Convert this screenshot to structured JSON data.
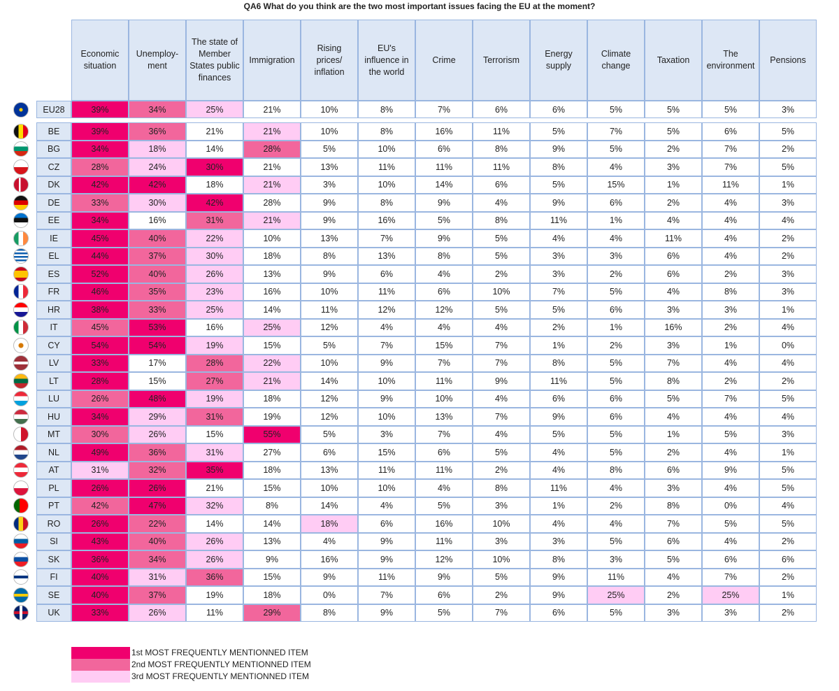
{
  "title": "QA6 What do you think are the two most important issues facing the EU at the moment?",
  "columns": [
    "Economic situation",
    "Unemploy- ment",
    "The state of Member States public finances",
    "Immigration",
    "Rising prices/ inflation",
    "EU's influence in the world",
    "Crime",
    "Terrorism",
    "Energy supply",
    "Climate change",
    "Taxation",
    "The environment",
    "Pensions"
  ],
  "rows": [
    {
      "code": "EU28",
      "cells": [
        "39%",
        "34%",
        "25%",
        "21%",
        "10%",
        "8%",
        "7%",
        "6%",
        "6%",
        "5%",
        "5%",
        "5%",
        "3%"
      ],
      "highlights": [
        [
          0,
          1
        ],
        [
          1,
          2
        ],
        [
          2,
          3
        ]
      ]
    },
    {
      "code": "BE",
      "cells": [
        "39%",
        "36%",
        "21%",
        "21%",
        "10%",
        "8%",
        "16%",
        "11%",
        "5%",
        "7%",
        "5%",
        "6%",
        "5%"
      ],
      "highlights": [
        [
          0,
          1
        ],
        [
          1,
          2
        ],
        [
          3,
          3
        ]
      ]
    },
    {
      "code": "BG",
      "cells": [
        "34%",
        "18%",
        "14%",
        "28%",
        "5%",
        "10%",
        "6%",
        "8%",
        "9%",
        "5%",
        "2%",
        "7%",
        "2%"
      ],
      "highlights": [
        [
          0,
          1
        ],
        [
          1,
          3
        ],
        [
          3,
          2
        ]
      ]
    },
    {
      "code": "CZ",
      "cells": [
        "28%",
        "24%",
        "30%",
        "21%",
        "13%",
        "11%",
        "11%",
        "11%",
        "8%",
        "4%",
        "3%",
        "7%",
        "5%"
      ],
      "highlights": [
        [
          0,
          2
        ],
        [
          1,
          3
        ],
        [
          2,
          1
        ]
      ]
    },
    {
      "code": "DK",
      "cells": [
        "42%",
        "42%",
        "18%",
        "21%",
        "3%",
        "10%",
        "14%",
        "6%",
        "5%",
        "15%",
        "1%",
        "11%",
        "1%"
      ],
      "highlights": [
        [
          0,
          1
        ],
        [
          1,
          1
        ],
        [
          3,
          3
        ]
      ]
    },
    {
      "code": "DE",
      "cells": [
        "33%",
        "30%",
        "42%",
        "28%",
        "9%",
        "8%",
        "9%",
        "4%",
        "9%",
        "6%",
        "2%",
        "4%",
        "3%"
      ],
      "highlights": [
        [
          0,
          2
        ],
        [
          1,
          3
        ],
        [
          2,
          1
        ]
      ]
    },
    {
      "code": "EE",
      "cells": [
        "34%",
        "16%",
        "31%",
        "21%",
        "9%",
        "16%",
        "5%",
        "8%",
        "11%",
        "1%",
        "4%",
        "4%",
        "4%"
      ],
      "highlights": [
        [
          0,
          1
        ],
        [
          2,
          2
        ],
        [
          3,
          3
        ]
      ]
    },
    {
      "code": "IE",
      "cells": [
        "45%",
        "40%",
        "22%",
        "10%",
        "13%",
        "7%",
        "9%",
        "5%",
        "4%",
        "4%",
        "11%",
        "4%",
        "2%"
      ],
      "highlights": [
        [
          0,
          1
        ],
        [
          1,
          2
        ],
        [
          2,
          3
        ]
      ]
    },
    {
      "code": "EL",
      "cells": [
        "44%",
        "37%",
        "30%",
        "18%",
        "8%",
        "13%",
        "8%",
        "5%",
        "3%",
        "3%",
        "6%",
        "4%",
        "2%"
      ],
      "highlights": [
        [
          0,
          1
        ],
        [
          1,
          2
        ],
        [
          2,
          3
        ]
      ]
    },
    {
      "code": "ES",
      "cells": [
        "52%",
        "40%",
        "26%",
        "13%",
        "9%",
        "6%",
        "4%",
        "2%",
        "3%",
        "2%",
        "6%",
        "2%",
        "3%"
      ],
      "highlights": [
        [
          0,
          1
        ],
        [
          1,
          2
        ],
        [
          2,
          3
        ]
      ]
    },
    {
      "code": "FR",
      "cells": [
        "46%",
        "35%",
        "23%",
        "16%",
        "10%",
        "11%",
        "6%",
        "10%",
        "7%",
        "5%",
        "4%",
        "8%",
        "3%"
      ],
      "highlights": [
        [
          0,
          1
        ],
        [
          1,
          2
        ],
        [
          2,
          3
        ]
      ]
    },
    {
      "code": "HR",
      "cells": [
        "38%",
        "33%",
        "25%",
        "14%",
        "11%",
        "12%",
        "12%",
        "5%",
        "5%",
        "6%",
        "3%",
        "3%",
        "1%"
      ],
      "highlights": [
        [
          0,
          1
        ],
        [
          1,
          2
        ],
        [
          2,
          3
        ]
      ]
    },
    {
      "code": "IT",
      "cells": [
        "45%",
        "53%",
        "16%",
        "25%",
        "12%",
        "4%",
        "4%",
        "4%",
        "2%",
        "1%",
        "16%",
        "2%",
        "4%"
      ],
      "highlights": [
        [
          0,
          2
        ],
        [
          1,
          1
        ],
        [
          3,
          3
        ]
      ]
    },
    {
      "code": "CY",
      "cells": [
        "54%",
        "54%",
        "19%",
        "15%",
        "5%",
        "7%",
        "15%",
        "7%",
        "1%",
        "2%",
        "3%",
        "1%",
        "0%"
      ],
      "highlights": [
        [
          0,
          1
        ],
        [
          1,
          1
        ],
        [
          2,
          3
        ]
      ]
    },
    {
      "code": "LV",
      "cells": [
        "33%",
        "17%",
        "28%",
        "22%",
        "10%",
        "9%",
        "7%",
        "7%",
        "8%",
        "5%",
        "7%",
        "4%",
        "4%"
      ],
      "highlights": [
        [
          0,
          1
        ],
        [
          2,
          2
        ],
        [
          3,
          3
        ]
      ]
    },
    {
      "code": "LT",
      "cells": [
        "28%",
        "15%",
        "27%",
        "21%",
        "14%",
        "10%",
        "11%",
        "9%",
        "11%",
        "5%",
        "8%",
        "2%",
        "2%"
      ],
      "highlights": [
        [
          0,
          1
        ],
        [
          2,
          2
        ],
        [
          3,
          3
        ]
      ]
    },
    {
      "code": "LU",
      "cells": [
        "26%",
        "48%",
        "19%",
        "18%",
        "12%",
        "9%",
        "10%",
        "4%",
        "6%",
        "6%",
        "5%",
        "7%",
        "5%"
      ],
      "highlights": [
        [
          0,
          2
        ],
        [
          1,
          1
        ],
        [
          2,
          3
        ]
      ]
    },
    {
      "code": "HU",
      "cells": [
        "34%",
        "29%",
        "31%",
        "19%",
        "12%",
        "10%",
        "13%",
        "7%",
        "9%",
        "6%",
        "4%",
        "4%",
        "4%"
      ],
      "highlights": [
        [
          0,
          1
        ],
        [
          1,
          3
        ],
        [
          2,
          2
        ]
      ]
    },
    {
      "code": "MT",
      "cells": [
        "30%",
        "26%",
        "15%",
        "55%",
        "5%",
        "3%",
        "7%",
        "4%",
        "5%",
        "5%",
        "1%",
        "5%",
        "3%"
      ],
      "highlights": [
        [
          0,
          2
        ],
        [
          1,
          3
        ],
        [
          3,
          1
        ]
      ]
    },
    {
      "code": "NL",
      "cells": [
        "49%",
        "36%",
        "31%",
        "27%",
        "6%",
        "15%",
        "6%",
        "5%",
        "4%",
        "5%",
        "2%",
        "4%",
        "1%"
      ],
      "highlights": [
        [
          0,
          1
        ],
        [
          1,
          2
        ],
        [
          2,
          3
        ]
      ]
    },
    {
      "code": "AT",
      "cells": [
        "31%",
        "32%",
        "35%",
        "18%",
        "13%",
        "11%",
        "11%",
        "2%",
        "4%",
        "8%",
        "6%",
        "9%",
        "5%"
      ],
      "highlights": [
        [
          0,
          3
        ],
        [
          1,
          2
        ],
        [
          2,
          1
        ]
      ]
    },
    {
      "code": "PL",
      "cells": [
        "26%",
        "26%",
        "21%",
        "15%",
        "10%",
        "10%",
        "4%",
        "8%",
        "11%",
        "4%",
        "3%",
        "4%",
        "5%"
      ],
      "highlights": [
        [
          0,
          1
        ],
        [
          1,
          1
        ]
      ]
    },
    {
      "code": "PT",
      "cells": [
        "42%",
        "47%",
        "32%",
        "8%",
        "14%",
        "4%",
        "5%",
        "3%",
        "1%",
        "2%",
        "8%",
        "0%",
        "4%"
      ],
      "highlights": [
        [
          0,
          2
        ],
        [
          1,
          1
        ],
        [
          2,
          3
        ]
      ]
    },
    {
      "code": "RO",
      "cells": [
        "26%",
        "22%",
        "14%",
        "14%",
        "18%",
        "6%",
        "16%",
        "10%",
        "4%",
        "4%",
        "7%",
        "5%",
        "5%"
      ],
      "highlights": [
        [
          0,
          1
        ],
        [
          1,
          2
        ],
        [
          4,
          3
        ]
      ]
    },
    {
      "code": "SI",
      "cells": [
        "43%",
        "40%",
        "26%",
        "13%",
        "4%",
        "9%",
        "11%",
        "3%",
        "3%",
        "5%",
        "6%",
        "4%",
        "2%"
      ],
      "highlights": [
        [
          0,
          1
        ],
        [
          1,
          2
        ],
        [
          2,
          3
        ]
      ]
    },
    {
      "code": "SK",
      "cells": [
        "36%",
        "34%",
        "26%",
        "9%",
        "16%",
        "9%",
        "12%",
        "10%",
        "8%",
        "3%",
        "5%",
        "6%",
        "6%"
      ],
      "highlights": [
        [
          0,
          1
        ],
        [
          1,
          2
        ],
        [
          2,
          3
        ]
      ]
    },
    {
      "code": "FI",
      "cells": [
        "40%",
        "31%",
        "36%",
        "15%",
        "9%",
        "11%",
        "9%",
        "5%",
        "9%",
        "11%",
        "4%",
        "7%",
        "2%"
      ],
      "highlights": [
        [
          0,
          1
        ],
        [
          1,
          3
        ],
        [
          2,
          2
        ]
      ]
    },
    {
      "code": "SE",
      "cells": [
        "40%",
        "37%",
        "19%",
        "18%",
        "0%",
        "7%",
        "6%",
        "2%",
        "9%",
        "25%",
        "2%",
        "25%",
        "1%"
      ],
      "highlights": [
        [
          0,
          1
        ],
        [
          1,
          2
        ],
        [
          9,
          3
        ],
        [
          11,
          3
        ]
      ]
    },
    {
      "code": "UK",
      "cells": [
        "33%",
        "26%",
        "11%",
        "29%",
        "8%",
        "9%",
        "5%",
        "7%",
        "6%",
        "5%",
        "3%",
        "3%",
        "2%"
      ],
      "highlights": [
        [
          0,
          1
        ],
        [
          1,
          3
        ],
        [
          3,
          2
        ]
      ]
    }
  ],
  "legend": [
    {
      "rank": 1,
      "color": "#f0006e",
      "label": "1st MOST FREQUENTLY MENTIONNED ITEM"
    },
    {
      "rank": 2,
      "color": "#f2669c",
      "label": "2nd MOST FREQUENTLY MENTIONNED ITEM"
    },
    {
      "rank": 3,
      "color": "#ffccf4",
      "label": "3rd MOST FREQUENTLY MENTIONNED ITEM"
    }
  ]
}
